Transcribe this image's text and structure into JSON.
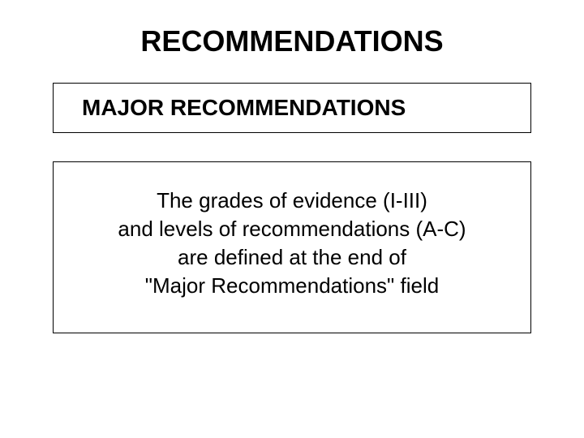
{
  "title": "RECOMMENDATIONS",
  "subtitle": "MAJOR RECOMMENDATIONS",
  "body_lines": {
    "line1": "The grades of evidence (I-III)",
    "line2": "and levels of recommendations (A-C)",
    "line3": "are defined at the end of",
    "line4": "\"Major Recommendations\" field"
  },
  "colors": {
    "background": "#ffffff",
    "text": "#000000",
    "border": "#000000"
  },
  "typography": {
    "title_fontsize": 36,
    "title_weight": "bold",
    "subtitle_fontsize": 28,
    "subtitle_weight": "bold",
    "body_fontsize": 26,
    "body_weight": "normal",
    "font_family": "Arial"
  },
  "layout": {
    "box_border_width": 1,
    "spacing_between_boxes": 35
  }
}
